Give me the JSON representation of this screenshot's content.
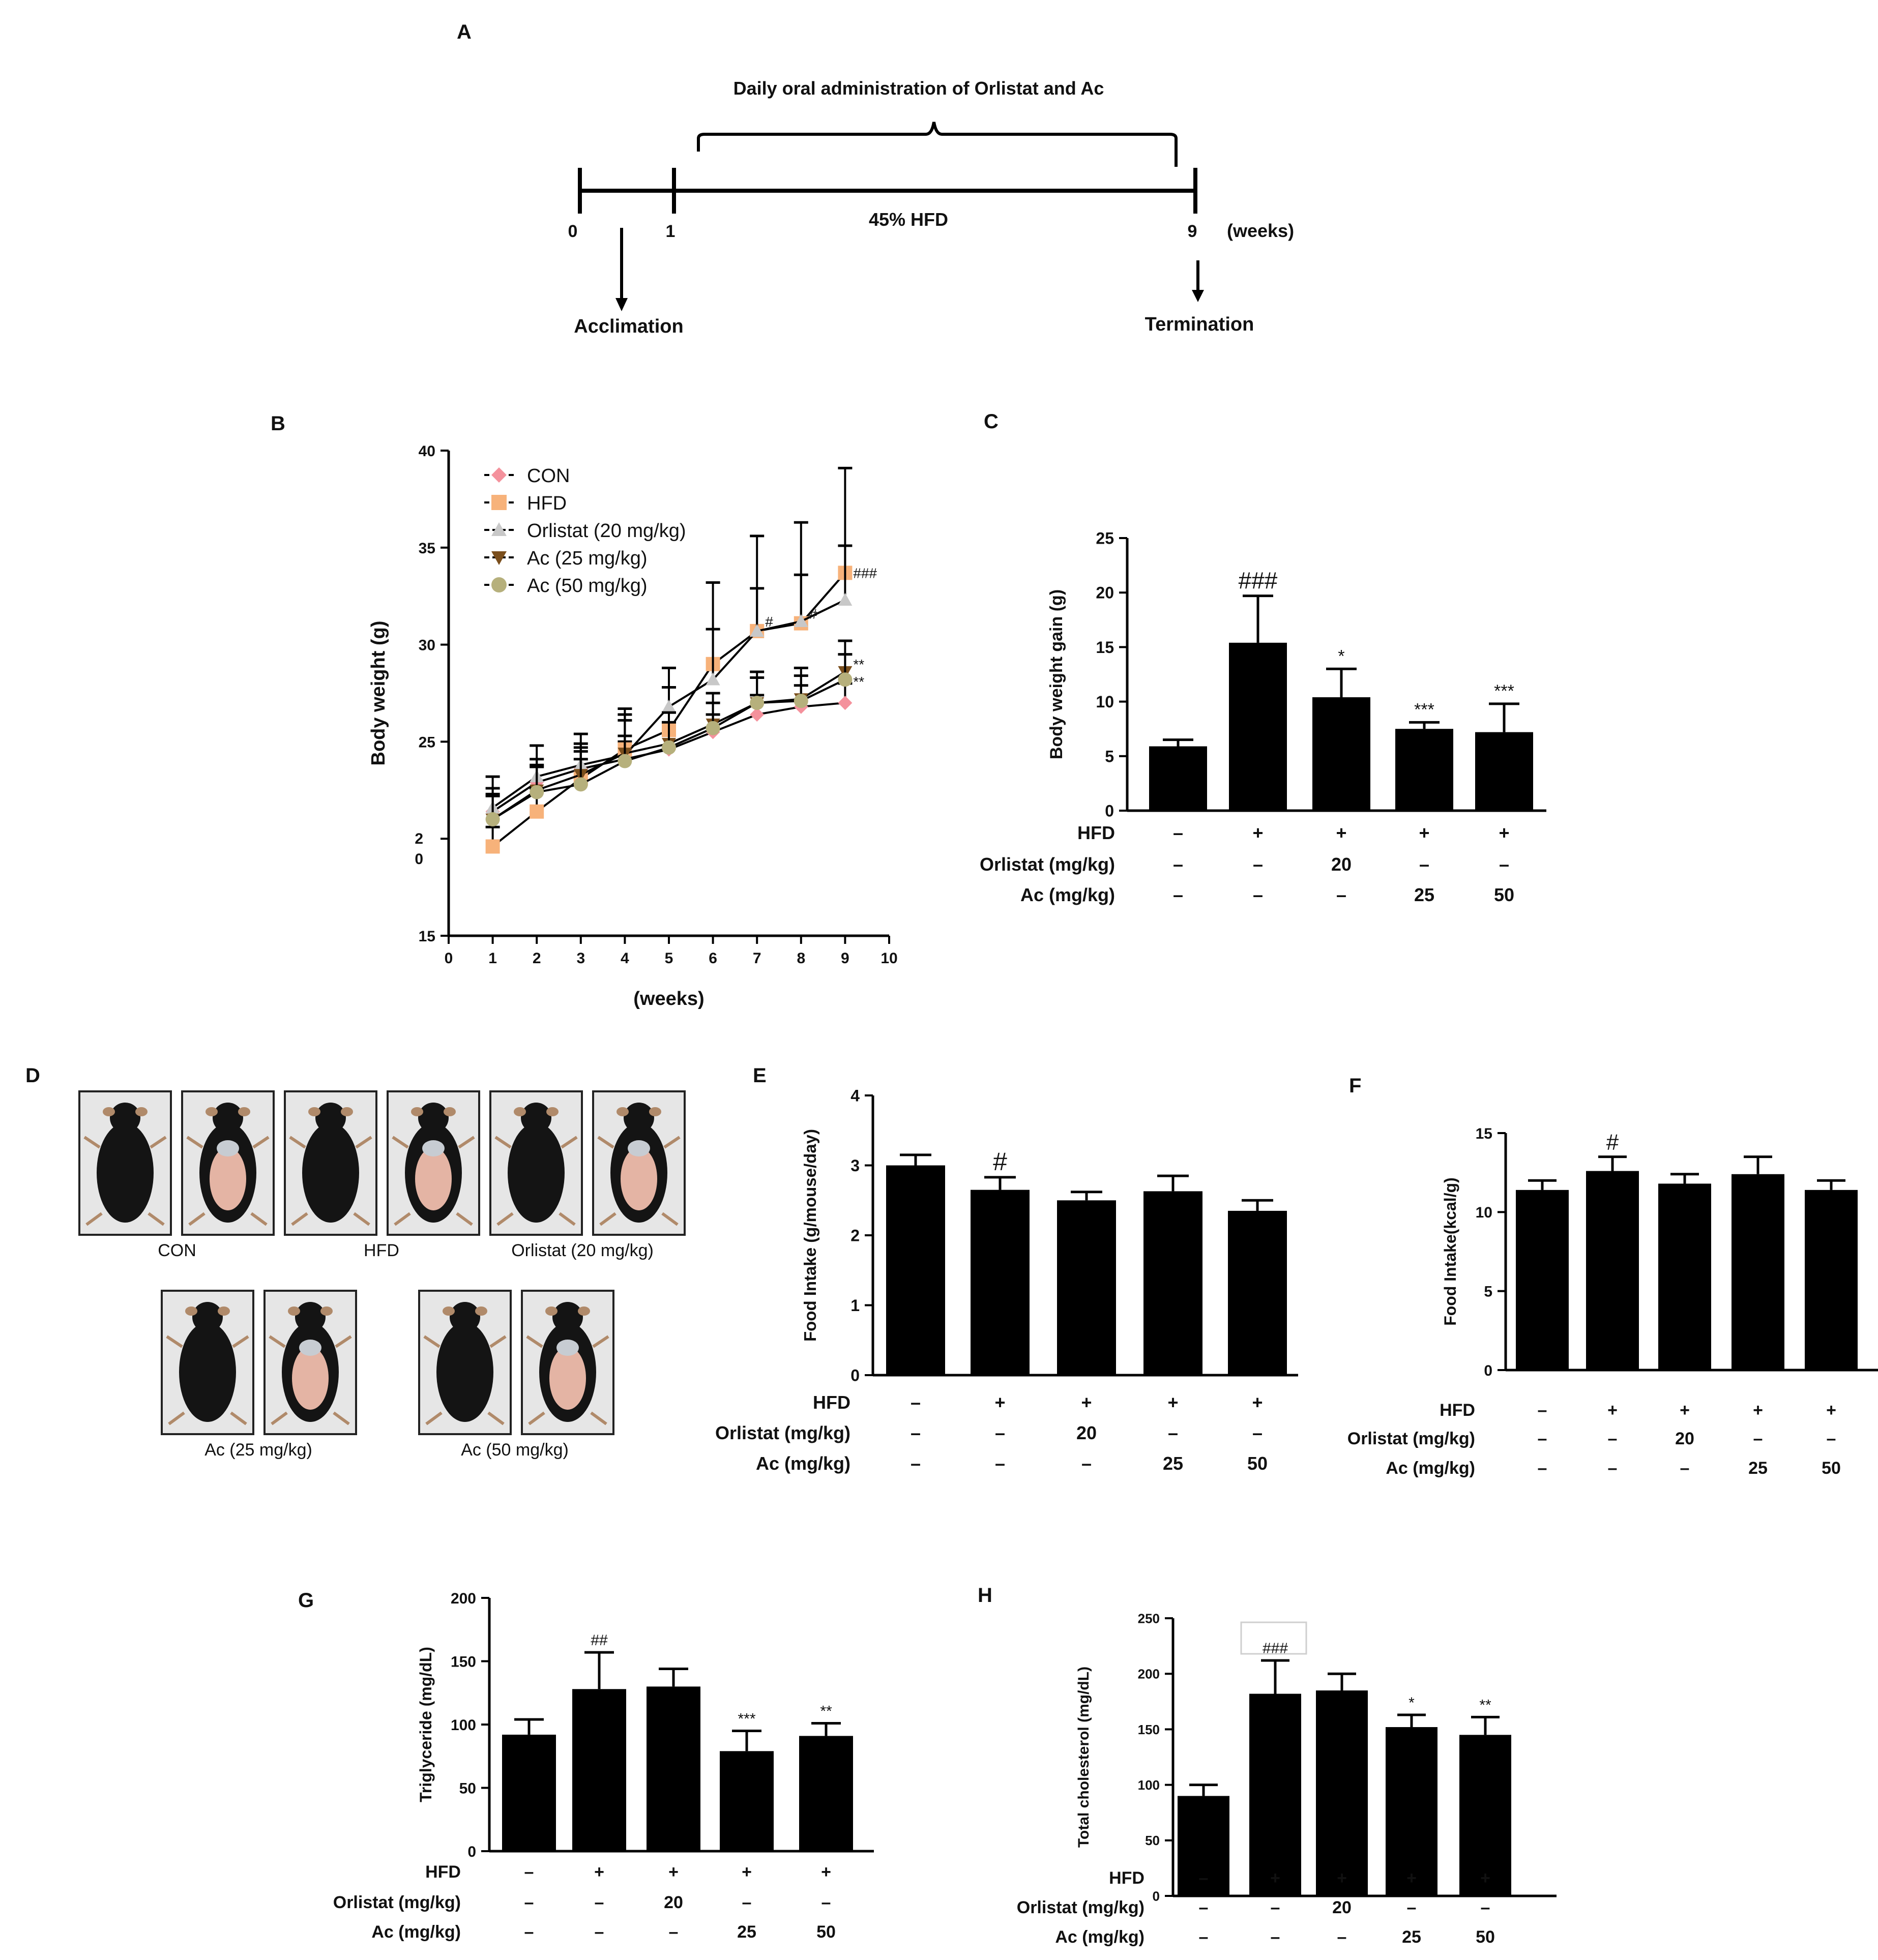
{
  "panel_letters": {
    "A": "A",
    "B": "B",
    "C": "C",
    "D": "D",
    "E": "E",
    "F": "F",
    "G": "G",
    "H": "H"
  },
  "timeline": {
    "title": "Daily oral administration of Orlistat and Ac",
    "diet_label": "45% HFD",
    "ticks": [
      "0",
      "1",
      "9"
    ],
    "unit": "(weeks)",
    "start_label": "Acclimation",
    "end_label": "Termination"
  },
  "treatment_table": {
    "row_labels": [
      "HFD",
      "Orlistat (mg/kg)",
      "Ac (mg/kg)"
    ],
    "columns": [
      [
        "–",
        "–",
        "–"
      ],
      [
        "+",
        "–",
        "–"
      ],
      [
        "+",
        "20",
        "–"
      ],
      [
        "+",
        "–",
        "25"
      ],
      [
        "+",
        "–",
        "50"
      ]
    ]
  },
  "photos": {
    "groups": [
      {
        "label": "CON",
        "count": 2
      },
      {
        "label": "HFD",
        "count": 2
      },
      {
        "label": "Orlistat (20 mg/kg)",
        "count": 2
      },
      {
        "label": "Ac (25 mg/kg)",
        "count": 2
      },
      {
        "label": "Ac (50 mg/kg)",
        "count": 2
      }
    ],
    "colors": {
      "fur": "#141414",
      "skin": "#e4b4a4",
      "background": "#e6e6e6"
    }
  },
  "chart_data": [
    {
      "panel": "B",
      "type": "line",
      "xlabel": "(weeks)",
      "ylabel": "Body weight (g)",
      "x": [
        1,
        2,
        3,
        4,
        5,
        6,
        7,
        8,
        9
      ],
      "xlim": [
        0,
        10
      ],
      "ylim": [
        15,
        40
      ],
      "xticks": [
        "0",
        "1",
        "2",
        "3",
        "4",
        "5",
        "6",
        "7",
        "8",
        "9",
        "10"
      ],
      "yticks": [
        "15",
        "2\n0",
        "25",
        "30",
        "35",
        "40"
      ],
      "series": [
        {
          "name": "CON",
          "color": "#f4919c",
          "marker": "diamond",
          "values": [
            21.4,
            22.9,
            23.6,
            24.1,
            24.6,
            25.5,
            26.4,
            26.8,
            27.0
          ],
          "errors": [
            0.8,
            0.9,
            0.9,
            0.9,
            0.9,
            0.9,
            1.0,
            1.1,
            1.0
          ]
        },
        {
          "name": "HFD",
          "color": "#f7b27a",
          "marker": "square",
          "values": [
            19.6,
            21.4,
            23.1,
            24.6,
            25.6,
            29.0,
            30.7,
            31.1,
            33.7
          ],
          "errors": [
            1.0,
            1.2,
            1.6,
            1.8,
            2.2,
            4.2,
            4.9,
            5.2,
            5.4
          ]
        },
        {
          "name": "Orlistat (20 mg/kg)",
          "color": "#c8c8c8",
          "marker": "triangle-up",
          "values": [
            21.6,
            23.2,
            23.8,
            24.3,
            26.8,
            28.2,
            30.7,
            31.2,
            32.3
          ],
          "errors": [
            1.6,
            1.6,
            1.6,
            1.8,
            2.0,
            2.6,
            2.2,
            2.4,
            2.8
          ]
        },
        {
          "name": "Ac (25 mg/kg)",
          "color": "#7a4e1c",
          "marker": "triangle-down",
          "values": [
            21.0,
            22.5,
            23.3,
            24.4,
            24.9,
            25.9,
            27.0,
            27.2,
            28.6
          ],
          "errors": [
            1.6,
            1.6,
            1.6,
            2.3,
            1.6,
            1.6,
            1.6,
            1.6,
            1.6
          ]
        },
        {
          "name": "Ac (50 mg/kg)",
          "color": "#b6b07c",
          "marker": "circle",
          "values": [
            21.0,
            22.4,
            22.8,
            24.0,
            24.7,
            25.7,
            27.0,
            27.1,
            28.2
          ],
          "errors": [
            1.3,
            1.3,
            1.3,
            1.3,
            1.3,
            1.3,
            1.3,
            1.3,
            1.3
          ]
        }
      ],
      "annotations": [
        {
          "text": "#",
          "x": 7,
          "y": 31.2
        },
        {
          "text": "#",
          "x": 8,
          "y": 31.6
        },
        {
          "text": "###",
          "x": 9,
          "y": 33.7
        },
        {
          "text": "**",
          "x": 9,
          "y": 29.0
        },
        {
          "text": "**",
          "x": 9,
          "y": 28.1
        }
      ],
      "legend": "top-left"
    },
    {
      "panel": "C",
      "type": "bar",
      "ylabel": "Body weight gain (g)",
      "ylim": [
        0,
        25
      ],
      "yticks": [
        "0",
        "5",
        "10",
        "15",
        "20",
        "25"
      ],
      "values": [
        5.9,
        15.4,
        10.4,
        7.5,
        7.2
      ],
      "errors": [
        0.6,
        4.3,
        2.6,
        0.6,
        2.6
      ],
      "significance": [
        "",
        "###",
        "*",
        "***",
        "***"
      ]
    },
    {
      "panel": "E",
      "type": "bar",
      "ylabel": "Food Intake (g/mouse/day)",
      "ylim": [
        0,
        4
      ],
      "yticks": [
        "0",
        "1",
        "2",
        "3",
        "4"
      ],
      "values": [
        3.0,
        2.65,
        2.5,
        2.63,
        2.35
      ],
      "errors": [
        0.15,
        0.18,
        0.12,
        0.22,
        0.15
      ],
      "significance": [
        "",
        "#",
        "",
        "",
        ""
      ]
    },
    {
      "panel": "F",
      "type": "bar",
      "ylabel": "Food Intake(kcal/g)",
      "ylim": [
        0,
        15
      ],
      "yticks": [
        "0",
        "5",
        "10",
        "15"
      ],
      "values": [
        11.4,
        12.6,
        11.8,
        12.4,
        11.4
      ],
      "errors": [
        0.6,
        0.9,
        0.6,
        1.1,
        0.6
      ],
      "significance": [
        "",
        "#",
        "",
        "",
        ""
      ]
    },
    {
      "panel": "G",
      "type": "bar",
      "ylabel": "Triglyceride (mg/dL)",
      "ylim": [
        0,
        200
      ],
      "yticks": [
        "0",
        "50",
        "100",
        "150",
        "200"
      ],
      "values": [
        92,
        128,
        130,
        79,
        91
      ],
      "errors": [
        12,
        29,
        14,
        16,
        10
      ],
      "significance": [
        "",
        "##",
        "",
        "***",
        "**"
      ]
    },
    {
      "panel": "H",
      "type": "bar",
      "ylabel": "Total cholesterol (mg/dL)",
      "ylim": [
        0,
        250
      ],
      "yticks": [
        "0",
        "50",
        "100",
        "150",
        "200",
        "250"
      ],
      "values": [
        90,
        182,
        185,
        152,
        145
      ],
      "errors": [
        10,
        30,
        15,
        11,
        16
      ],
      "significance": [
        "",
        "###",
        "",
        "*",
        "**"
      ]
    }
  ]
}
